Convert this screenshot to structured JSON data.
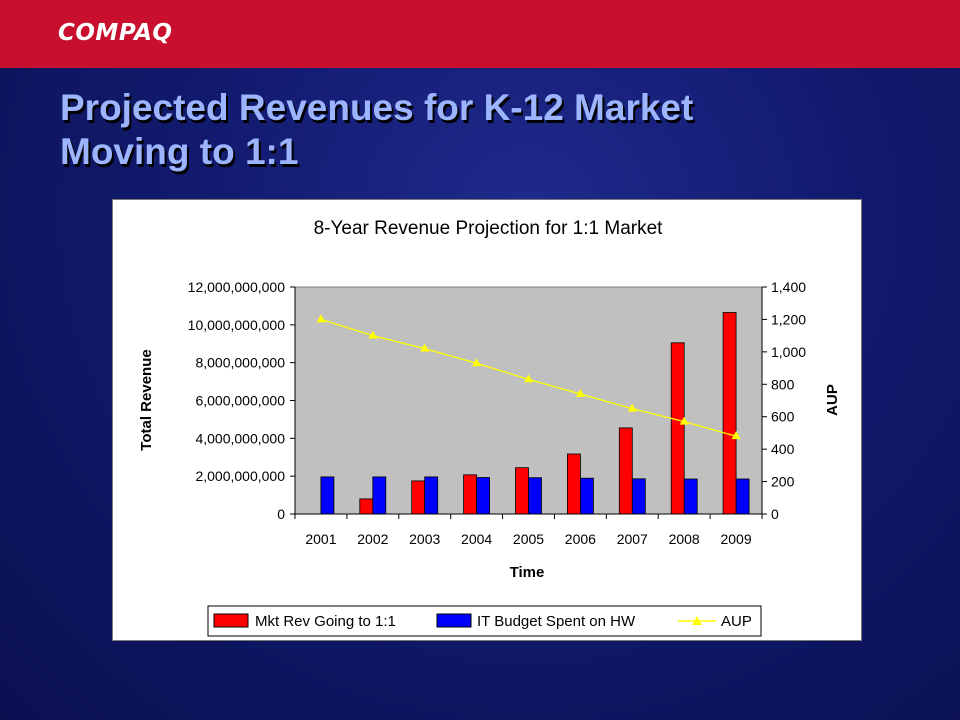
{
  "header": {
    "logo_text": "COMPAQ",
    "bar_color": "#c8102e"
  },
  "slide": {
    "title_line1": "Projected Revenues for K-12 Market",
    "title_line2": "Moving to 1:1"
  },
  "chart_data": {
    "type": "bar",
    "title": "8-Year Revenue Projection for 1:1 Market",
    "xlabel": "Time",
    "ylabel": "Total Revenue",
    "y2label": "AUP",
    "categories": [
      "2001",
      "2002",
      "2003",
      "2004",
      "2005",
      "2006",
      "2007",
      "2008",
      "2009"
    ],
    "ylim": [
      0,
      12000000000
    ],
    "y_ticks": [
      0,
      2000000000,
      4000000000,
      6000000000,
      8000000000,
      10000000000,
      12000000000
    ],
    "y_tick_labels": [
      "0",
      "2,000,000,000",
      "4,000,000,000",
      "6,000,000,000",
      "8,000,000,000",
      "10,000,000,000",
      "12,000,000,000"
    ],
    "y2lim": [
      0,
      1400
    ],
    "y2_ticks": [
      0,
      200,
      400,
      600,
      800,
      1000,
      1200,
      1400
    ],
    "y2_tick_labels": [
      "0",
      "200",
      "400",
      "600",
      "800",
      "1,000",
      "1,200",
      "1,400"
    ],
    "grid": false,
    "plot_background": "#c0c0c0",
    "legend_position": "bottom",
    "series": [
      {
        "name": "Mkt Rev Going to 1:1",
        "type": "bar",
        "axis": "left",
        "color": "#ff0000",
        "values": [
          0,
          800000000,
          1750000000,
          2070000000,
          2450000000,
          3170000000,
          4550000000,
          9050000000,
          10650000000
        ]
      },
      {
        "name": "IT Budget Spent on HW",
        "type": "bar",
        "axis": "left",
        "color": "#0000ff",
        "values": [
          1960000000,
          1960000000,
          1960000000,
          1930000000,
          1920000000,
          1890000000,
          1860000000,
          1850000000,
          1850000000
        ]
      },
      {
        "name": "AUP",
        "type": "line",
        "axis": "right",
        "color": "#ffff00",
        "marker": "triangle",
        "values": [
          1200,
          1100,
          1020,
          930,
          830,
          740,
          650,
          570,
          480
        ]
      }
    ]
  }
}
